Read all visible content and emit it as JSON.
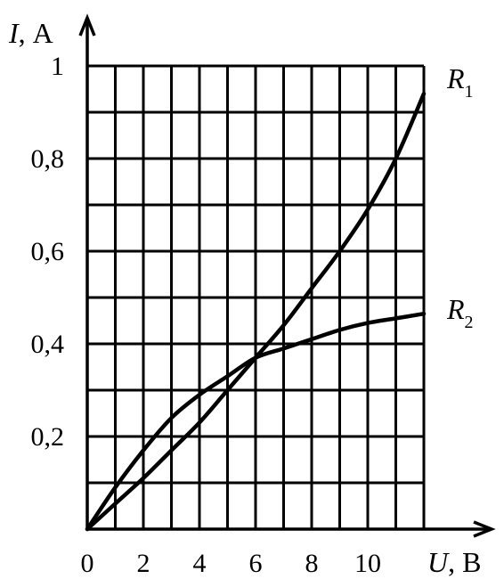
{
  "chart_data": {
    "type": "line",
    "title": "",
    "xlabel": {
      "symbol": "U",
      "unit": ", В"
    },
    "ylabel": {
      "symbol": "I",
      "unit": ", А"
    },
    "xlim": [
      0,
      12
    ],
    "ylim": [
      0,
      1
    ],
    "x_ticks": [
      "0",
      "2",
      "4",
      "6",
      "8",
      "10"
    ],
    "y_ticks": [
      {
        "value": 0.2,
        "label": "0,2"
      },
      {
        "value": 0.4,
        "label": "0,4"
      },
      {
        "value": 0.6,
        "label": "0,6"
      },
      {
        "value": 0.8,
        "label": "0,8"
      },
      {
        "value": 1.0,
        "label": "1"
      }
    ],
    "grid": true,
    "series": [
      {
        "name": "R",
        "subscript": "1",
        "x": [
          0,
          1,
          2,
          3,
          4,
          5,
          6,
          7,
          8,
          9,
          10,
          11,
          12
        ],
        "y": [
          0,
          0.055,
          0.11,
          0.17,
          0.23,
          0.3,
          0.37,
          0.44,
          0.52,
          0.6,
          0.69,
          0.8,
          0.94
        ]
      },
      {
        "name": "R",
        "subscript": "2",
        "x": [
          0,
          1,
          2,
          3,
          4,
          5,
          6,
          7,
          8,
          9,
          10,
          11,
          12
        ],
        "y": [
          0,
          0.09,
          0.17,
          0.24,
          0.29,
          0.33,
          0.37,
          0.39,
          0.41,
          0.43,
          0.445,
          0.455,
          0.465
        ]
      }
    ]
  }
}
